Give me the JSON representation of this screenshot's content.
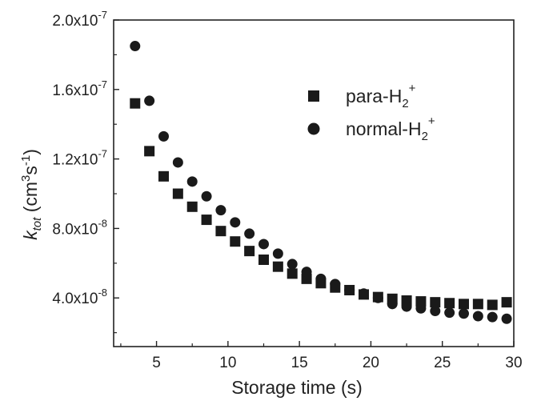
{
  "chart_data": {
    "type": "scatter",
    "xlabel": "Storage time (s)",
    "ylabel": {
      "main": "k",
      "subscript": "tot",
      "unit_prefix": " (cm",
      "unit_exp1": "3",
      "unit_mid": "s",
      "unit_exp2": "-1",
      "unit_suffix": ")"
    },
    "xlim": [
      2,
      30
    ],
    "ylim": [
      1.2e-08,
      2e-07
    ],
    "x_ticks": [
      5,
      10,
      15,
      20,
      25,
      30
    ],
    "x_tick_labels": [
      "5",
      "10",
      "15",
      "20",
      "25",
      "30"
    ],
    "y_ticks": [
      4e-08,
      8e-08,
      1.2e-07,
      1.6e-07,
      2e-07
    ],
    "y_tick_labels": [
      {
        "mantissa": "4.0x10",
        "exp": "-8"
      },
      {
        "mantissa": "8.0x10",
        "exp": "-8"
      },
      {
        "mantissa": "1.2x10",
        "exp": "-7"
      },
      {
        "mantissa": "1.6x10",
        "exp": "-7"
      },
      {
        "mantissa": "2.0x10",
        "exp": "-7"
      }
    ],
    "grid": false,
    "legend_position": "top-right",
    "series": [
      {
        "name": {
          "prefix": "para-H",
          "sub": "2",
          "sup": "+"
        },
        "marker": "square",
        "color": "#1a1a1a",
        "points": [
          [
            3.5,
            1.52e-07
          ],
          [
            4.5,
            1.245e-07
          ],
          [
            5.5,
            1.1e-07
          ],
          [
            6.5,
            1e-07
          ],
          [
            7.5,
            9.25e-08
          ],
          [
            8.5,
            8.5e-08
          ],
          [
            9.5,
            7.85e-08
          ],
          [
            10.5,
            7.25e-08
          ],
          [
            11.5,
            6.7e-08
          ],
          [
            12.5,
            6.2e-08
          ],
          [
            13.5,
            5.8e-08
          ],
          [
            14.5,
            5.4e-08
          ],
          [
            15.5,
            5.1e-08
          ],
          [
            16.5,
            4.85e-08
          ],
          [
            17.5,
            4.6e-08
          ],
          [
            18.5,
            4.45e-08
          ],
          [
            19.5,
            4.2e-08
          ],
          [
            20.5,
            4.05e-08
          ],
          [
            21.5,
            3.95e-08
          ],
          [
            22.5,
            3.85e-08
          ],
          [
            23.5,
            3.8e-08
          ],
          [
            24.5,
            3.75e-08
          ],
          [
            25.5,
            3.7e-08
          ],
          [
            26.5,
            3.65e-08
          ],
          [
            27.5,
            3.65e-08
          ],
          [
            28.5,
            3.6e-08
          ],
          [
            29.5,
            3.75e-08
          ]
        ]
      },
      {
        "name": {
          "prefix": "normal-H",
          "sub": "2",
          "sup": "+"
        },
        "marker": "circle",
        "color": "#1a1a1a",
        "points": [
          [
            3.5,
            1.85e-07
          ],
          [
            4.5,
            1.535e-07
          ],
          [
            5.5,
            1.33e-07
          ],
          [
            6.5,
            1.18e-07
          ],
          [
            7.5,
            1.07e-07
          ],
          [
            8.5,
            9.85e-08
          ],
          [
            9.5,
            9.05e-08
          ],
          [
            10.5,
            8.35e-08
          ],
          [
            11.5,
            7.7e-08
          ],
          [
            12.5,
            7.1e-08
          ],
          [
            13.5,
            6.55e-08
          ],
          [
            14.5,
            5.95e-08
          ],
          [
            15.5,
            5.5e-08
          ],
          [
            16.5,
            5.1e-08
          ],
          [
            17.5,
            4.8e-08
          ],
          [
            18.5,
            4.45e-08
          ],
          [
            19.5,
            4.25e-08
          ],
          [
            20.5,
            4e-08
          ],
          [
            21.5,
            3.65e-08
          ],
          [
            22.5,
            3.5e-08
          ],
          [
            23.5,
            3.4e-08
          ],
          [
            24.5,
            3.25e-08
          ],
          [
            25.5,
            3.15e-08
          ],
          [
            26.5,
            3.1e-08
          ],
          [
            27.5,
            2.95e-08
          ],
          [
            28.5,
            2.9e-08
          ],
          [
            29.5,
            2.8e-08
          ]
        ]
      }
    ]
  }
}
